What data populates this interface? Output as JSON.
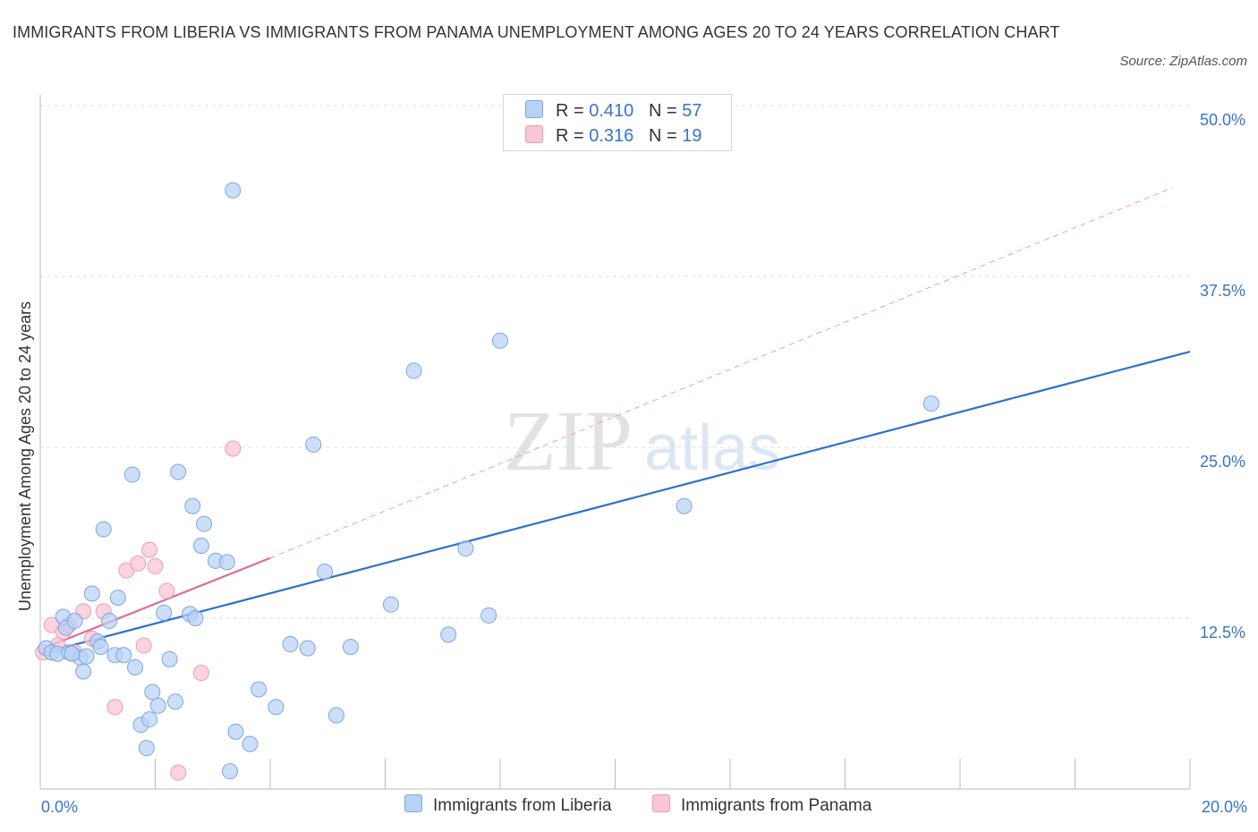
{
  "title": "IMMIGRANTS FROM LIBERIA VS IMMIGRANTS FROM PANAMA UNEMPLOYMENT AMONG AGES 20 TO 24 YEARS CORRELATION CHART",
  "source": "Source: ZipAtlas.com",
  "watermark": {
    "zip": "ZIP",
    "atlas": "atlas"
  },
  "legend": {
    "liberia": {
      "r_label": "R =",
      "r_value": "0.410",
      "n_label": "N =",
      "n_value": "57"
    },
    "panama": {
      "r_label": "R =",
      "r_value": "0.316",
      "n_label": "N =",
      "n_value": "19"
    }
  },
  "colors": {
    "liberia_fill": "#b8d2f5",
    "liberia_stroke": "#7aa6e0",
    "liberia_line": "#2f72cc",
    "panama_fill": "#f8c6d5",
    "panama_stroke": "#ee9bb5",
    "panama_line": "#e06b95",
    "grid": "#dddddd",
    "axis_text": "#3a73c8"
  },
  "chart_data": {
    "type": "scatter",
    "title": "IMMIGRANTS FROM LIBERIA VS IMMIGRANTS FROM PANAMA UNEMPLOYMENT AMONG AGES 20 TO 24 YEARS CORRELATION CHART",
    "xlabel": "",
    "ylabel": "Unemployment Among Ages 20 to 24 years",
    "xlim": [
      0,
      20
    ],
    "ylim": [
      0,
      50
    ],
    "x_tick_labels": [
      "0.0%",
      "20.0%"
    ],
    "y_ticks": [
      12.5,
      25.0,
      37.5,
      50.0
    ],
    "y_tick_labels": [
      "12.5%",
      "25.0%",
      "37.5%",
      "50.0%"
    ],
    "grid": true,
    "legend_position": "top-center",
    "series": [
      {
        "name": "Immigrants from Liberia",
        "r": 0.41,
        "n": 57,
        "trend": {
          "x": [
            0,
            20
          ],
          "y": [
            9.9,
            32.0
          ],
          "style": "solid"
        },
        "points": [
          [
            0.1,
            10.3
          ],
          [
            0.2,
            10.0
          ],
          [
            0.3,
            9.9
          ],
          [
            0.4,
            12.6
          ],
          [
            0.45,
            11.8
          ],
          [
            0.5,
            10.0
          ],
          [
            0.6,
            12.3
          ],
          [
            0.7,
            9.6
          ],
          [
            0.75,
            8.6
          ],
          [
            0.8,
            9.7
          ],
          [
            0.9,
            14.3
          ],
          [
            1.0,
            10.8
          ],
          [
            1.05,
            10.4
          ],
          [
            1.1,
            19.0
          ],
          [
            1.2,
            12.3
          ],
          [
            1.3,
            9.8
          ],
          [
            1.35,
            14.0
          ],
          [
            1.45,
            9.8
          ],
          [
            1.6,
            23.0
          ],
          [
            1.65,
            8.9
          ],
          [
            1.75,
            4.7
          ],
          [
            1.85,
            3.0
          ],
          [
            1.9,
            5.1
          ],
          [
            1.95,
            7.1
          ],
          [
            2.05,
            6.1
          ],
          [
            2.15,
            12.9
          ],
          [
            2.25,
            9.5
          ],
          [
            2.35,
            6.4
          ],
          [
            2.4,
            23.2
          ],
          [
            2.6,
            12.8
          ],
          [
            2.65,
            20.7
          ],
          [
            2.7,
            12.5
          ],
          [
            2.8,
            17.8
          ],
          [
            2.85,
            19.4
          ],
          [
            3.05,
            16.7
          ],
          [
            3.25,
            16.6
          ],
          [
            3.3,
            1.3
          ],
          [
            3.35,
            43.8
          ],
          [
            3.4,
            4.2
          ],
          [
            3.65,
            3.3
          ],
          [
            3.8,
            7.3
          ],
          [
            4.1,
            6.0
          ],
          [
            4.35,
            10.6
          ],
          [
            4.65,
            10.3
          ],
          [
            4.75,
            25.2
          ],
          [
            4.95,
            15.9
          ],
          [
            5.15,
            5.4
          ],
          [
            5.4,
            10.4
          ],
          [
            6.1,
            13.5
          ],
          [
            6.5,
            30.6
          ],
          [
            7.1,
            11.3
          ],
          [
            7.4,
            17.6
          ],
          [
            7.8,
            12.7
          ],
          [
            8.0,
            32.8
          ],
          [
            11.2,
            20.7
          ],
          [
            15.5,
            28.2
          ],
          [
            0.55,
            9.9
          ]
        ]
      },
      {
        "name": "Immigrants from Panama",
        "r": 0.316,
        "n": 19,
        "trend": {
          "x": [
            0,
            4.0
          ],
          "y": [
            10.2,
            16.9
          ],
          "style": "solid"
        },
        "trend_extended": {
          "x": [
            4.0,
            19.7
          ],
          "y": [
            16.9,
            44.0
          ],
          "style": "dashed"
        },
        "points": [
          [
            0.05,
            10.0
          ],
          [
            0.2,
            12.0
          ],
          [
            0.3,
            10.5
          ],
          [
            0.4,
            11.5
          ],
          [
            0.5,
            12.0
          ],
          [
            0.6,
            10.0
          ],
          [
            0.75,
            13.0
          ],
          [
            0.9,
            11.0
          ],
          [
            1.1,
            13.0
          ],
          [
            1.3,
            6.0
          ],
          [
            1.5,
            16.0
          ],
          [
            1.7,
            16.5
          ],
          [
            1.8,
            10.5
          ],
          [
            1.9,
            17.5
          ],
          [
            2.0,
            16.3
          ],
          [
            2.2,
            14.5
          ],
          [
            2.4,
            1.2
          ],
          [
            2.8,
            8.5
          ],
          [
            3.35,
            24.9
          ]
        ]
      }
    ]
  }
}
